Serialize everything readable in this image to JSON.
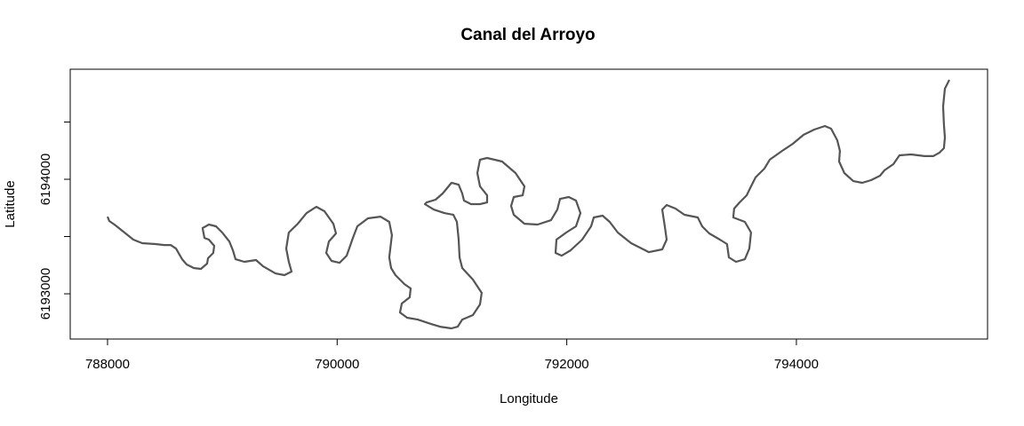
{
  "chart_data": {
    "type": "line",
    "title": "Canal del Arroyo",
    "x_label": "Longitude",
    "y_label": "Latitude",
    "color": "#555555",
    "xlim": [
      787675,
      795665
    ],
    "ylim": [
      6192605,
      6194961
    ],
    "xticks": [
      788000,
      790000,
      792000,
      794000
    ],
    "yticks": [
      6193000,
      6194000
    ],
    "yticks_unlabeled": [
      6193500,
      6194500
    ],
    "x": [
      788000,
      788015,
      788070,
      788147,
      788225,
      788302,
      788418,
      788495,
      788550,
      788596,
      788650,
      788689,
      788751,
      788813,
      788867,
      788875,
      788921,
      788929,
      788883,
      788844,
      788828,
      788883,
      788945,
      788999,
      789061,
      789092,
      789115,
      789192,
      789293,
      789355,
      789463,
      789541,
      789603,
      789579,
      789556,
      789579,
      789657,
      789734,
      789819,
      789889,
      789967,
      789990,
      789928,
      789905,
      789951,
      790021,
      790083,
      790137,
      790176,
      790268,
      790377,
      790454,
      790477,
      790454,
      790470,
      790508,
      790586,
      790640,
      790632,
      790563,
      790547,
      790609,
      790702,
      790818,
      790896,
      790996,
      791050,
      791089,
      791182,
      791244,
      791259,
      791182,
      791089,
      791066,
      791058,
      791043,
      791012,
      790934,
      790841,
      790764,
      790779,
      790857,
      790919,
      790996,
      791058,
      791089,
      791105,
      791166,
      791244,
      791306,
      791306,
      791244,
      791221,
      791244,
      791306,
      791437,
      791554,
      791631,
      791616,
      791538,
      791515,
      791538,
      791631,
      791747,
      791863,
      791918,
      791941,
      792018,
      792080,
      792119,
      792080,
      791995,
      791910,
      791902,
      791956,
      792034,
      792134,
      792212,
      792235,
      792312,
      792374,
      792444,
      792560,
      792715,
      792831,
      792870,
      792854,
      792831,
      792870,
      792947,
      793025,
      793141,
      793179,
      793241,
      793334,
      793396,
      793412,
      793474,
      793551,
      793590,
      793605,
      793551,
      793450,
      793458,
      793505,
      793567,
      793605,
      793644,
      793721,
      793768,
      793876,
      793969,
      794062,
      794155,
      794248,
      794302,
      794356,
      794379,
      794372,
      794418,
      794496,
      794573,
      794650,
      794728,
      794767,
      794844,
      794898,
      794999,
      795115,
      795192,
      795247,
      795285,
      795293,
      795285,
      795278,
      795293,
      795332
    ],
    "y": [
      6193674,
      6193636,
      6193597,
      6193535,
      6193473,
      6193442,
      6193434,
      6193426,
      6193426,
      6193395,
      6193302,
      6193256,
      6193225,
      6193217,
      6193264,
      6193310,
      6193357,
      6193419,
      6193473,
      6193488,
      6193574,
      6193605,
      6193589,
      6193535,
      6193457,
      6193380,
      6193302,
      6193279,
      6193295,
      6193240,
      6193178,
      6193163,
      6193194,
      6193279,
      6193395,
      6193535,
      6193612,
      6193705,
      6193760,
      6193721,
      6193612,
      6193527,
      6193457,
      6193357,
      6193287,
      6193271,
      6193333,
      6193488,
      6193589,
      6193659,
      6193674,
      6193628,
      6193512,
      6193318,
      6193225,
      6193163,
      6193085,
      6193047,
      6192969,
      6192915,
      6192837,
      6192791,
      6192775,
      6192736,
      6192713,
      6192698,
      6192713,
      6192775,
      6192814,
      6192907,
      6193008,
      6193124,
      6193225,
      6193318,
      6193473,
      6193628,
      6193690,
      6193705,
      6193736,
      6193783,
      6193798,
      6193822,
      6193876,
      6193969,
      6193953,
      6193876,
      6193814,
      6193783,
      6193783,
      6193798,
      6193860,
      6193938,
      6194054,
      6194171,
      6194186,
      6194155,
      6194054,
      6193938,
      6193860,
      6193845,
      6193767,
      6193690,
      6193612,
      6193605,
      6193643,
      6193736,
      6193829,
      6193845,
      6193814,
      6193705,
      6193589,
      6193535,
      6193473,
      6193357,
      6193333,
      6193380,
      6193473,
      6193589,
      6193667,
      6193682,
      6193628,
      6193535,
      6193442,
      6193364,
      6193388,
      6193473,
      6193589,
      6193736,
      6193775,
      6193744,
      6193690,
      6193667,
      6193589,
      6193527,
      6193473,
      6193434,
      6193318,
      6193279,
      6193302,
      6193395,
      6193535,
      6193628,
      6193667,
      6193744,
      6193798,
      6193860,
      6193938,
      6194016,
      6194093,
      6194171,
      6194248,
      6194310,
      6194388,
      6194434,
      6194465,
      6194442,
      6194341,
      6194248,
      6194155,
      6194054,
      6193984,
      6193969,
      6193992,
      6194031,
      6194078,
      6194132,
      6194209,
      6194217,
      6194202,
      6194202,
      6194233,
      6194271,
      6194364,
      6194481,
      6194636,
      6194791,
      6194868
    ]
  }
}
